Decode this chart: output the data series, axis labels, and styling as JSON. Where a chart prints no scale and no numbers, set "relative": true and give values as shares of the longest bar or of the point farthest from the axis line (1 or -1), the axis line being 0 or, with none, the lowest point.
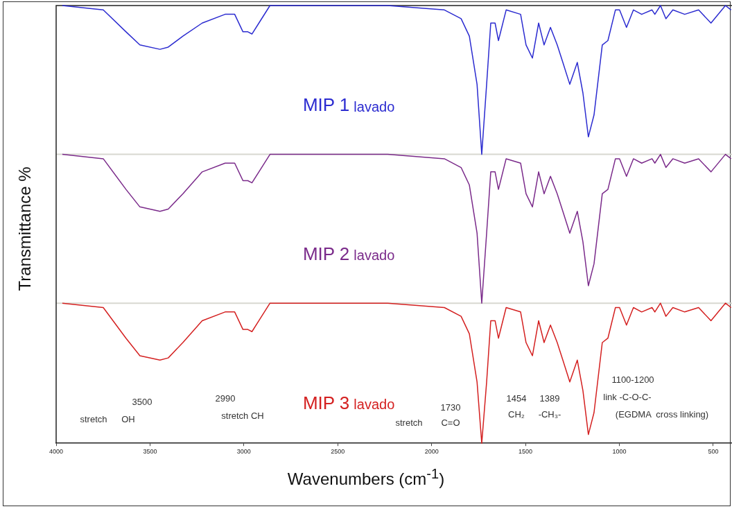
{
  "chart_data": {
    "type": "line",
    "relative": true,
    "xlabel": "Wavenumbers (cm$^{-1}$)",
    "ylabel": "Transmittance %",
    "xlim": [
      4000,
      400
    ],
    "xticks": [
      4000,
      3500,
      3000,
      2500,
      2000,
      1500,
      1000,
      500
    ],
    "x": [
      3967,
      3749,
      3628,
      3554,
      3447,
      3403,
      3325,
      3222,
      3100,
      3049,
      3005,
      2979,
      2957,
      2920,
      2861,
      2651,
      2234,
      1932,
      1843,
      1799,
      1758,
      1733,
      1707,
      1685,
      1662,
      1644,
      1603,
      1526,
      1497,
      1463,
      1430,
      1401,
      1367,
      1331,
      1301,
      1264,
      1224,
      1194,
      1165,
      1135,
      1091,
      1061,
      1021,
      999,
      962,
      925,
      881,
      826,
      811,
      781,
      752,
      715,
      652,
      578,
      512,
      435,
      405
    ],
    "series": [
      {
        "name": "MIP 1 lavado",
        "color": "#2b2bd0",
        "values": [
          1.0,
          0.99,
          0.94,
          0.91,
          0.9,
          0.905,
          0.93,
          0.96,
          0.98,
          0.98,
          0.94,
          0.94,
          0.935,
          0.96,
          1.0,
          1.0,
          1.0,
          0.99,
          0.97,
          0.93,
          0.82,
          0.66,
          0.82,
          0.96,
          0.96,
          0.92,
          0.99,
          0.98,
          0.91,
          0.88,
          0.96,
          0.91,
          0.95,
          0.91,
          0.87,
          0.82,
          0.87,
          0.8,
          0.7,
          0.75,
          0.91,
          0.92,
          0.99,
          0.99,
          0.95,
          0.99,
          0.98,
          0.99,
          0.98,
          1.0,
          0.97,
          0.99,
          0.98,
          0.99,
          0.96,
          1.0,
          0.99
        ]
      },
      {
        "name": "MIP 2 lavado",
        "color": "#7a2a8a",
        "values": [
          0.66,
          0.65,
          0.58,
          0.54,
          0.53,
          0.535,
          0.57,
          0.62,
          0.64,
          0.64,
          0.6,
          0.6,
          0.595,
          0.62,
          0.66,
          0.66,
          0.66,
          0.65,
          0.63,
          0.59,
          0.48,
          0.32,
          0.48,
          0.62,
          0.62,
          0.58,
          0.65,
          0.64,
          0.57,
          0.54,
          0.62,
          0.57,
          0.61,
          0.57,
          0.53,
          0.48,
          0.53,
          0.46,
          0.36,
          0.41,
          0.57,
          0.58,
          0.65,
          0.65,
          0.61,
          0.65,
          0.64,
          0.65,
          0.64,
          0.66,
          0.63,
          0.65,
          0.64,
          0.65,
          0.62,
          0.66,
          0.65
        ]
      },
      {
        "name": "MIP 3 lavado",
        "color": "#d42020",
        "values": [
          0.32,
          0.31,
          0.24,
          0.2,
          0.19,
          0.195,
          0.23,
          0.28,
          0.3,
          0.3,
          0.26,
          0.26,
          0.255,
          0.28,
          0.32,
          0.32,
          0.32,
          0.31,
          0.29,
          0.25,
          0.14,
          0.0,
          0.14,
          0.28,
          0.28,
          0.24,
          0.31,
          0.3,
          0.23,
          0.2,
          0.28,
          0.23,
          0.27,
          0.23,
          0.19,
          0.14,
          0.19,
          0.12,
          0.02,
          0.07,
          0.23,
          0.24,
          0.31,
          0.31,
          0.27,
          0.31,
          0.3,
          0.31,
          0.3,
          0.32,
          0.29,
          0.31,
          0.3,
          0.31,
          0.28,
          0.32,
          0.31
        ]
      }
    ],
    "ref_lines": [
      {
        "axis": "y",
        "value": 0.66,
        "color": "#d8d8d0"
      },
      {
        "axis": "y",
        "value": 0.32,
        "color": "#d8d8d0"
      }
    ],
    "annotations": [
      "3500",
      "stretch",
      "OH",
      "2990",
      "stretch CH",
      "1730",
      "stretch",
      "C=O",
      "1454",
      "CH₂",
      "1389",
      "-CH₃-",
      "1100-1200",
      "link -C-O-C-",
      "(EGDMA  cross linking)"
    ],
    "legend": false,
    "grid": false,
    "marker": "none",
    "line_style": "solid"
  }
}
